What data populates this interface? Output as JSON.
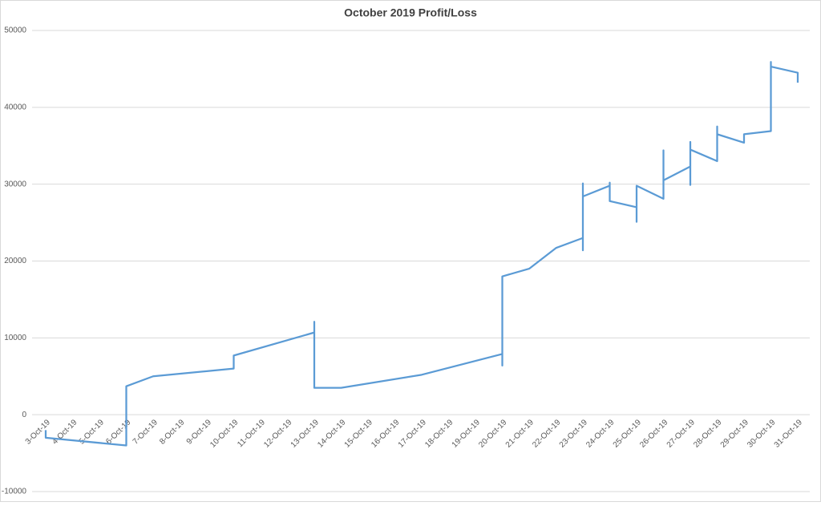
{
  "chart_data": {
    "type": "line",
    "title": "October 2019 Profit/Loss",
    "categories": [
      "3-Oct-19",
      "4-Oct-19",
      "5-Oct-19",
      "6-Oct-19",
      "7-Oct-19",
      "8-Oct-19",
      "9-Oct-19",
      "10-Oct-19",
      "11-Oct-19",
      "12-Oct-19",
      "13-Oct-19",
      "14-Oct-19",
      "15-Oct-19",
      "16-Oct-19",
      "17-Oct-19",
      "18-Oct-19",
      "19-Oct-19",
      "20-Oct-19",
      "21-Oct-19",
      "22-Oct-19",
      "23-Oct-19",
      "24-Oct-19",
      "25-Oct-19",
      "26-Oct-19",
      "27-Oct-19",
      "28-Oct-19",
      "29-Oct-19",
      "30-Oct-19",
      "31-Oct-19"
    ],
    "series": [
      {
        "name": "Profit/Loss",
        "color": "#5b9bd5",
        "x": [
          "3-Oct-19",
          "3-Oct-19",
          "6-Oct-19",
          "6-Oct-19",
          "7-Oct-19",
          "10-Oct-19",
          "10-Oct-19",
          "13-Oct-19",
          "13-Oct-19",
          "13-Oct-19",
          "14-Oct-19",
          "17-Oct-19",
          "20-Oct-19",
          "20-Oct-19",
          "20-Oct-19",
          "21-Oct-19",
          "22-Oct-19",
          "23-Oct-19",
          "23-Oct-19",
          "23-Oct-19",
          "23-Oct-19",
          "24-Oct-19",
          "24-Oct-19",
          "24-Oct-19",
          "25-Oct-19",
          "25-Oct-19",
          "25-Oct-19",
          "26-Oct-19",
          "26-Oct-19",
          "26-Oct-19",
          "27-Oct-19",
          "27-Oct-19",
          "27-Oct-19",
          "27-Oct-19",
          "28-Oct-19",
          "28-Oct-19",
          "28-Oct-19",
          "29-Oct-19",
          "29-Oct-19",
          "30-Oct-19",
          "30-Oct-19",
          "30-Oct-19",
          "31-Oct-19",
          "31-Oct-19"
        ],
        "values": [
          -2000,
          -3000,
          -4000,
          3700,
          5000,
          6000,
          7700,
          10700,
          12100,
          3500,
          3500,
          5200,
          7900,
          6400,
          18000,
          19000,
          21700,
          23000,
          21400,
          30100,
          28400,
          29800,
          30200,
          27800,
          27000,
          25100,
          29800,
          28100,
          34400,
          30500,
          32300,
          29900,
          35500,
          34500,
          33000,
          37500,
          36500,
          35400,
          36500,
          36900,
          45900,
          45300,
          44500,
          43200
        ]
      }
    ],
    "ylim": [
      -10000,
      50000
    ],
    "yticks": [
      -10000,
      0,
      10000,
      20000,
      30000,
      40000,
      50000
    ],
    "grid": true
  }
}
